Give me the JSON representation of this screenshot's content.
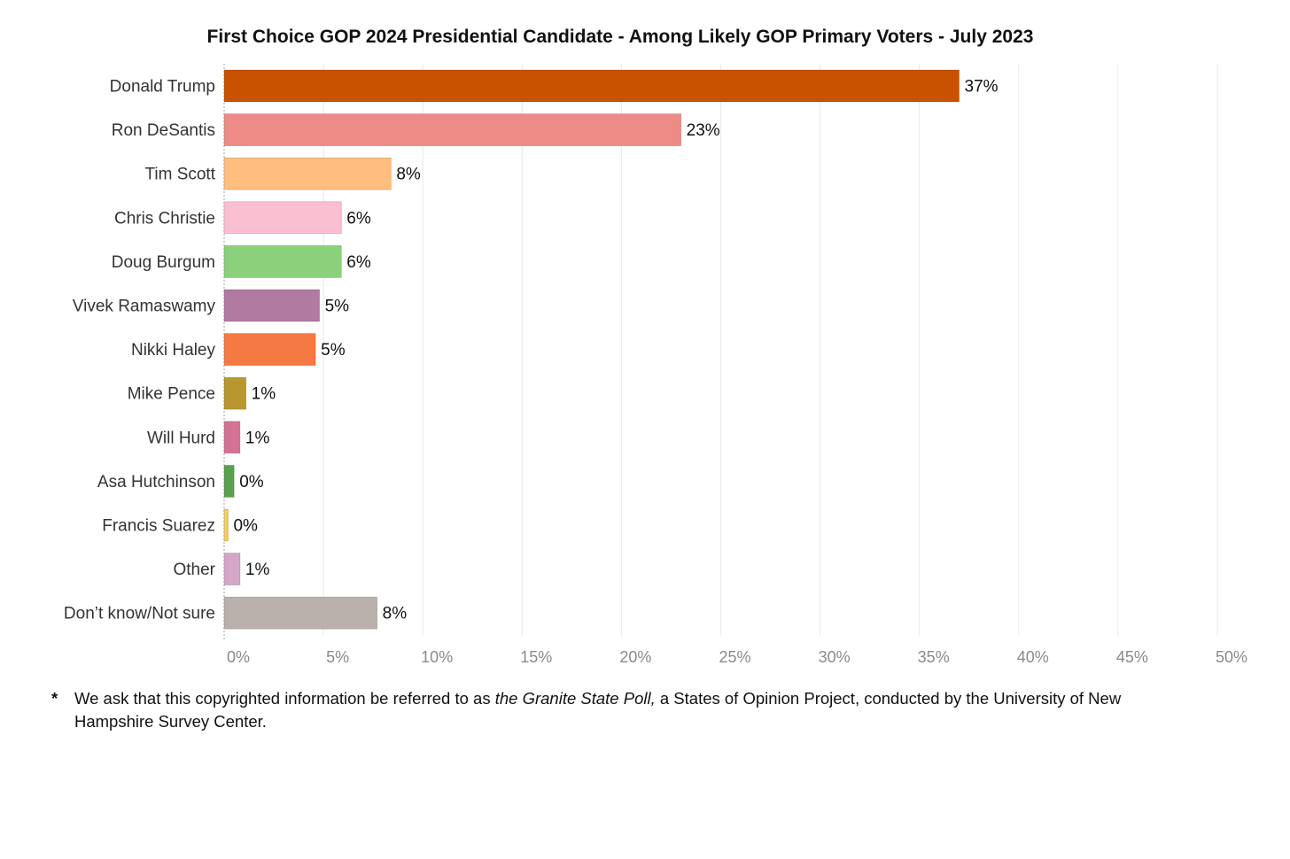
{
  "chart_data": {
    "type": "bar",
    "orientation": "horizontal",
    "title": "First Choice GOP 2024 Presidential Candidate - Among Likely GOP Primary Voters - July 2023",
    "xlabel": "",
    "ylabel": "",
    "xlim": [
      0,
      50
    ],
    "x_ticks": [
      "0%",
      "5%",
      "10%",
      "15%",
      "20%",
      "25%",
      "30%",
      "35%",
      "40%",
      "45%",
      "50%"
    ],
    "grid": "vertical",
    "legend": "none",
    "categories": [
      "Donald Trump",
      "Ron DeSantis",
      "Tim Scott",
      "Chris Christie",
      "Doug Burgum",
      "Vivek Ramaswamy",
      "Nikki Haley",
      "Mike Pence",
      "Will Hurd",
      "Asa Hutchinson",
      "Francis Suarez",
      "Other",
      "Don’t know/Not sure"
    ],
    "values": [
      37,
      23,
      8.4,
      5.9,
      5.9,
      4.8,
      4.6,
      1.1,
      0.8,
      0.5,
      0.2,
      0.8,
      7.7
    ],
    "data_labels": [
      "37%",
      "23%",
      "8%",
      "6%",
      "6%",
      "5%",
      "5%",
      "1%",
      "1%",
      "0%",
      "0%",
      "1%",
      "8%"
    ],
    "colors": [
      "#c85200",
      "#ed8b86",
      "#ffbe7d",
      "#fbbfd2",
      "#8bd17c",
      "#b07aa1",
      "#f47942",
      "#b9962f",
      "#d37295",
      "#59a14f",
      "#f1ce63",
      "#d4a6c8",
      "#bab0ac"
    ]
  },
  "footnote": {
    "marker": "*",
    "text_before": "We ask that this copyrighted information be referred to as ",
    "text_italic": "the Granite State Poll,",
    "text_after": " a States of Opinion Project, conducted by the University of New Hampshire Survey Center."
  }
}
